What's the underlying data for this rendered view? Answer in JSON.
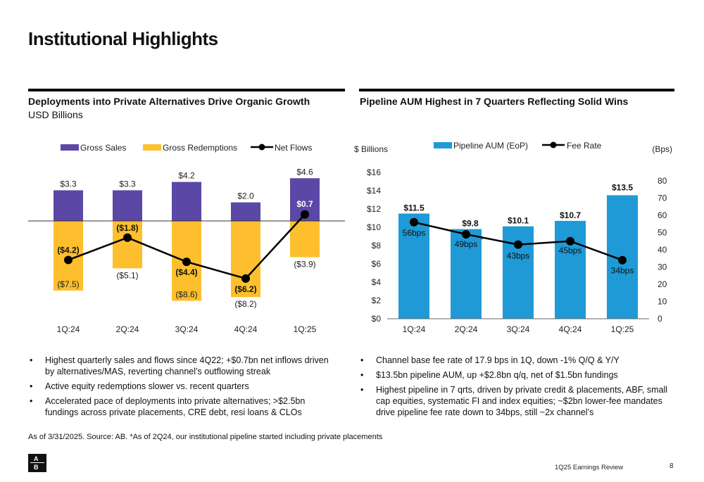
{
  "page": {
    "title": "Institutional Highlights",
    "footnote": "As of 3/31/2025. Source: AB. *As of 2Q24, our institutional pipeline started including private placements",
    "footer_label": "1Q25 Earnings Review",
    "page_number": "8",
    "logo_letters": [
      "A",
      "B"
    ]
  },
  "left": {
    "heading": "Deployments into Private Alternatives Drive Organic Growth",
    "subheading": "USD Billions",
    "bullets": [
      "Highest quarterly sales and flows since 4Q22; +$0.7bn net inflows driven by alternatives/MAS, reverting channel’s outflowing streak",
      "Active equity redemptions slower vs. recent quarters",
      "Accelerated pace of deployments into private alternatives; >$2.5bn fundings across private placements, CRE debt, resi loans & CLOs"
    ]
  },
  "right": {
    "heading": "Pipeline AUM Highest in 7 Quarters Reflecting Solid Wins",
    "bullets": [
      "Channel base fee rate of 17.9 bps in 1Q, down -1% Q/Q & Y/Y",
      "$13.5bn pipeline AUM, up +$2.8bn q/q, net of $1.5bn fundings",
      "Highest pipeline in 7 qrts, driven by private credit & placements, ABF, small cap equities, systematic FI and index equities; ~$2bn lower-fee mandates drive pipeline fee rate down to 34bps, still ~2x channel’s"
    ]
  },
  "colors": {
    "gross_sales": "#5b47a6",
    "gross_redemptions": "#fdbf2d",
    "net_flows": "#000000",
    "pipeline_aum": "#1f9ad6",
    "fee_rate": "#000000"
  },
  "chart_data": [
    {
      "type": "bar",
      "stacking": "diverging",
      "categories": [
        "1Q:24",
        "2Q:24",
        "3Q:24",
        "4Q:24",
        "1Q:25"
      ],
      "legend_position": "top",
      "grid": false,
      "ylim": [
        -9,
        5.5
      ],
      "series": [
        {
          "name": "Gross Sales",
          "type": "bar",
          "values": [
            3.3,
            3.3,
            4.2,
            2.0,
            4.6
          ],
          "labels": [
            "$3.3",
            "$3.3",
            "$4.2",
            "$2.0",
            "$4.6"
          ]
        },
        {
          "name": "Gross Redemptions",
          "type": "bar",
          "values": [
            -7.5,
            -5.1,
            -8.6,
            -8.2,
            -3.9
          ],
          "labels": [
            "($7.5)",
            "($5.1)",
            "($8.6)",
            "($8.2)",
            "($3.9)"
          ]
        },
        {
          "name": "Net Flows",
          "type": "line",
          "values": [
            -4.2,
            -1.8,
            -4.4,
            -6.2,
            0.7
          ],
          "labels": [
            "($4.2)",
            "($1.8)",
            "($4.4)",
            "($6.2)",
            "$0.7"
          ]
        }
      ]
    },
    {
      "type": "bar",
      "categories": [
        "1Q:24",
        "2Q:24",
        "3Q:24",
        "4Q:24",
        "1Q:25"
      ],
      "legend_position": "top",
      "grid": false,
      "ylabel": "$ Billions",
      "y2label": "(Bps)",
      "ylim": [
        0,
        16
      ],
      "y2lim": [
        0,
        85
      ],
      "yticks": [
        "$0",
        "$2",
        "$4",
        "$6",
        "$8",
        "$10",
        "$12",
        "$14",
        "$16"
      ],
      "y2ticks": [
        "0",
        "10",
        "20",
        "30",
        "40",
        "50",
        "60",
        "70",
        "80"
      ],
      "series": [
        {
          "name": "Pipeline AUM (EoP)",
          "type": "bar",
          "axis": "left",
          "values": [
            11.5,
            9.8,
            10.1,
            10.7,
            13.5
          ],
          "labels": [
            "$11.5",
            "$9.8",
            "$10.1",
            "$10.7",
            "$13.5"
          ]
        },
        {
          "name": "Fee Rate",
          "type": "line",
          "axis": "right",
          "values": [
            56,
            49,
            43,
            45,
            34
          ],
          "labels": [
            "56bps",
            "49bps",
            "43bps",
            "45bps",
            "34bps"
          ]
        }
      ],
      "annotations": [
        {
          "category": "2Q:24",
          "text": "*"
        }
      ]
    }
  ]
}
